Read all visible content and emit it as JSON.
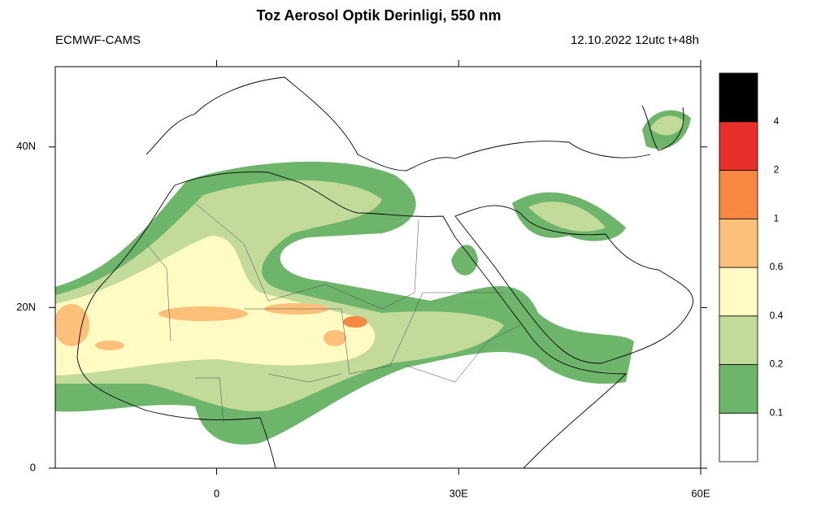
{
  "title": "Toz Aerosol Optik Derinligi, 550 nm",
  "subtitle_left": "ECMWF-CAMS",
  "subtitle_right": "12.10.2022 12utc t+48h",
  "map": {
    "xlim": [
      -20,
      60
    ],
    "ylim": [
      0,
      50
    ],
    "xticks": [
      {
        "value": 0,
        "label": "0"
      },
      {
        "value": 30,
        "label": "30E"
      },
      {
        "value": 60,
        "label": "60E"
      }
    ],
    "yticks": [
      {
        "value": 0,
        "label": "0"
      },
      {
        "value": 20,
        "label": "20N"
      },
      {
        "value": 40,
        "label": "40N"
      }
    ]
  },
  "colorbar": {
    "levels": [
      0.1,
      0.2,
      0.4,
      0.6,
      1,
      2,
      4
    ],
    "colors": [
      "#ffffff",
      "#6db56a",
      "#c2db9a",
      "#fffbc2",
      "#fdc07a",
      "#f68842",
      "#e8302a",
      "#000000"
    ]
  }
}
